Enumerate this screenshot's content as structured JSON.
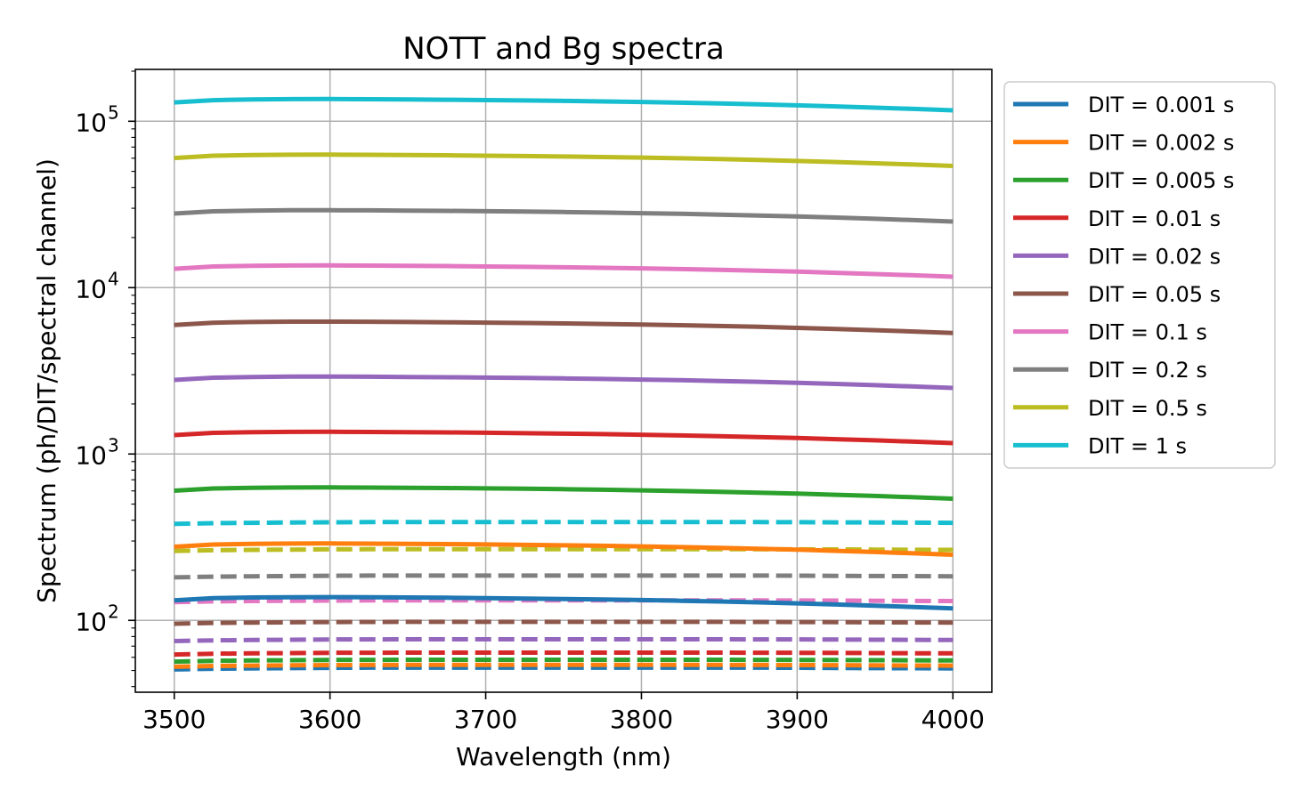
{
  "chart_data": {
    "type": "line",
    "title": "NOTT and Bg spectra",
    "xlabel": "Wavelength (nm)",
    "ylabel": "Spectrum (ph/DIT/spectral channel)",
    "xscale": "linear",
    "yscale": "log",
    "xlim": [
      3475,
      4025
    ],
    "ylim": [
      37,
      205000
    ],
    "xticks": [
      3500,
      3600,
      3700,
      3800,
      3900,
      4000
    ],
    "xtick_labels": [
      "3500",
      "3600",
      "3700",
      "3800",
      "3900",
      "4000"
    ],
    "yticks": [
      100,
      1000,
      10000,
      100000
    ],
    "ytick_labels": [
      {
        "base": "10",
        "exp": "2"
      },
      {
        "base": "10",
        "exp": "3"
      },
      {
        "base": "10",
        "exp": "4"
      },
      {
        "base": "10",
        "exp": "5"
      }
    ],
    "grid": true,
    "legend_position": "outside-right-top",
    "x": [
      3500,
      3525,
      3550,
      3575,
      3600,
      3625,
      3650,
      3675,
      3700,
      3725,
      3750,
      3775,
      3800,
      3825,
      3850,
      3875,
      3900,
      3925,
      3950,
      3975,
      4000
    ],
    "nott_profile": [
      0.955,
      0.985,
      0.995,
      0.999,
      1.0,
      0.998,
      0.995,
      0.991,
      0.986,
      0.981,
      0.975,
      0.968,
      0.96,
      0.951,
      0.941,
      0.93,
      0.917,
      0.903,
      0.888,
      0.872,
      0.855
    ],
    "bg_profile": [
      0.975,
      0.985,
      0.99,
      0.994,
      0.997,
      0.999,
      1.0,
      1.0,
      1.0,
      1.0,
      1.0,
      1.0,
      1.0,
      1.0,
      1.0,
      0.999,
      0.998,
      0.996,
      0.994,
      0.992,
      0.99
    ],
    "series": [
      {
        "name": "DIT = 0.001 s",
        "color": "#1f77b4",
        "nott_peak": 138,
        "bg_level": 52
      },
      {
        "name": "DIT = 0.002 s",
        "color": "#ff7f0e",
        "nott_peak": 290,
        "bg_level": 54
      },
      {
        "name": "DIT = 0.005 s",
        "color": "#2ca02c",
        "nott_peak": 630,
        "bg_level": 58
      },
      {
        "name": "DIT = 0.01 s",
        "color": "#d62728",
        "nott_peak": 1360,
        "bg_level": 64
      },
      {
        "name": "DIT = 0.02 s",
        "color": "#9467bd",
        "nott_peak": 2920,
        "bg_level": 77
      },
      {
        "name": "DIT = 0.05 s",
        "color": "#8c564b",
        "nott_peak": 6250,
        "bg_level": 98
      },
      {
        "name": "DIT = 0.1 s",
        "color": "#e377c2",
        "nott_peak": 13600,
        "bg_level": 132
      },
      {
        "name": "DIT = 0.2 s",
        "color": "#7f7f7f",
        "nott_peak": 29200,
        "bg_level": 186
      },
      {
        "name": "DIT = 0.5 s",
        "color": "#bcbd22",
        "nott_peak": 63000,
        "bg_level": 268
      },
      {
        "name": "DIT = 1 s",
        "color": "#17becf",
        "nott_peak": 136000,
        "bg_level": 390
      }
    ]
  }
}
